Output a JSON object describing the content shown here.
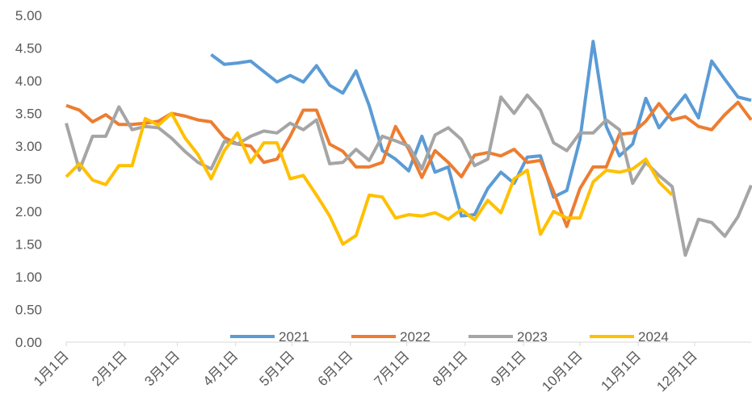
{
  "chart_data": {
    "type": "line",
    "x": [
      0,
      7,
      14,
      21,
      28,
      35,
      42,
      49,
      56,
      63,
      70,
      77,
      84,
      91,
      98,
      105,
      112,
      119,
      126,
      133,
      140,
      147,
      154,
      161,
      168,
      175,
      182,
      189,
      196,
      203,
      210,
      217,
      224,
      231,
      238,
      245,
      252,
      259,
      266,
      273,
      280,
      287,
      294,
      301,
      308,
      315,
      322,
      329,
      336,
      343,
      350,
      357,
      364
    ],
    "xlim": [
      0,
      364
    ],
    "xticks": [
      {
        "value": 0,
        "label": "1月1日"
      },
      {
        "value": 31,
        "label": "2月1日"
      },
      {
        "value": 59,
        "label": "3月1日"
      },
      {
        "value": 90,
        "label": "4月1日"
      },
      {
        "value": 120,
        "label": "5月1日"
      },
      {
        "value": 151,
        "label": "6月1日"
      },
      {
        "value": 181,
        "label": "7月1日"
      },
      {
        "value": 212,
        "label": "8月1日"
      },
      {
        "value": 243,
        "label": "9月1日"
      },
      {
        "value": 273,
        "label": "10月1日"
      },
      {
        "value": 304,
        "label": "11月1日"
      },
      {
        "value": 334,
        "label": "12月1日"
      }
    ],
    "ylim": [
      0,
      5
    ],
    "yticks": [
      {
        "value": 0,
        "label": "0.00"
      },
      {
        "value": 0.5,
        "label": "0.50"
      },
      {
        "value": 1,
        "label": "1.00"
      },
      {
        "value": 1.5,
        "label": "1.50"
      },
      {
        "value": 2,
        "label": "2.00"
      },
      {
        "value": 2.5,
        "label": "2.50"
      },
      {
        "value": 3,
        "label": "3.00"
      },
      {
        "value": 3.5,
        "label": "3.50"
      },
      {
        "value": 4,
        "label": "4.00"
      },
      {
        "value": 4.5,
        "label": "4.50"
      },
      {
        "value": 5,
        "label": "5.00"
      }
    ],
    "grid": false,
    "legend": "bottom",
    "series": [
      {
        "name": "2021",
        "color": "#5b9bd5",
        "values": [
          null,
          null,
          null,
          null,
          null,
          null,
          null,
          null,
          null,
          null,
          null,
          4.4,
          4.25,
          4.27,
          4.3,
          4.14,
          3.98,
          4.08,
          3.98,
          4.23,
          3.93,
          3.81,
          4.15,
          3.62,
          2.93,
          2.8,
          2.62,
          3.15,
          2.6,
          2.68,
          1.93,
          1.95,
          2.35,
          2.6,
          2.43,
          2.83,
          2.85,
          2.22,
          2.32,
          3.1,
          4.6,
          3.3,
          2.85,
          3.03,
          3.73,
          3.28,
          3.53,
          3.78,
          3.43,
          4.3,
          4.02,
          3.75,
          3.7
        ]
      },
      {
        "name": "2022",
        "color": "#ed7d31",
        "values": [
          3.62,
          3.55,
          3.37,
          3.48,
          3.33,
          3.33,
          3.35,
          3.38,
          3.5,
          3.46,
          3.4,
          3.37,
          3.13,
          3.03,
          3.0,
          2.75,
          2.8,
          3.15,
          3.55,
          3.55,
          3.03,
          2.92,
          2.68,
          2.68,
          2.75,
          3.3,
          2.95,
          2.52,
          2.93,
          2.75,
          2.53,
          2.86,
          2.9,
          2.85,
          2.95,
          2.75,
          2.78,
          2.3,
          1.77,
          2.35,
          2.68,
          2.68,
          3.18,
          3.2,
          3.38,
          3.65,
          3.4,
          3.45,
          3.3,
          3.25,
          3.48,
          3.67,
          3.4
        ]
      },
      {
        "name": "2023",
        "color": "#a5a5a5",
        "values": [
          3.35,
          2.63,
          3.15,
          3.15,
          3.6,
          3.25,
          3.3,
          3.28,
          3.12,
          2.92,
          2.75,
          2.65,
          3.07,
          3.03,
          3.15,
          3.23,
          3.2,
          3.35,
          3.25,
          3.4,
          2.73,
          2.75,
          2.95,
          2.78,
          3.15,
          3.08,
          3.0,
          2.65,
          3.17,
          3.28,
          3.1,
          2.7,
          2.8,
          3.75,
          3.5,
          3.78,
          3.55,
          3.05,
          2.93,
          3.2,
          3.2,
          3.4,
          3.25,
          2.43,
          2.75,
          2.55,
          2.38,
          1.33,
          1.88,
          1.83,
          1.62,
          1.92,
          2.4
        ]
      },
      {
        "name": "2024",
        "color": "#ffc000",
        "values": [
          2.53,
          2.73,
          2.48,
          2.41,
          2.7,
          2.7,
          3.42,
          3.32,
          3.5,
          3.13,
          2.87,
          2.5,
          2.93,
          3.2,
          2.75,
          3.05,
          3.05,
          2.5,
          2.55,
          2.25,
          1.93,
          1.5,
          1.63,
          2.25,
          2.22,
          1.9,
          1.95,
          1.93,
          1.98,
          1.88,
          2.03,
          1.87,
          2.17,
          1.98,
          2.5,
          2.63,
          1.65,
          2.0,
          1.9,
          1.9,
          2.45,
          2.63,
          2.6,
          2.65,
          2.8,
          2.45,
          2.25,
          null,
          null,
          null,
          null,
          null,
          null
        ]
      }
    ]
  }
}
